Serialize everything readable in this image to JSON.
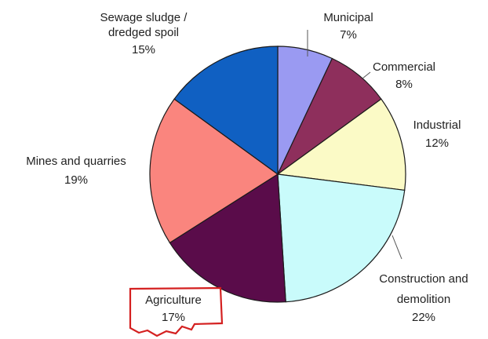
{
  "chart_data": {
    "type": "pie",
    "title": "",
    "slices": [
      {
        "name": "Municipal",
        "value": 7,
        "label": "7%",
        "color": "#9a9af2"
      },
      {
        "name": "Commercial",
        "value": 8,
        "label": "8%",
        "color": "#8e2f5c"
      },
      {
        "name": "Industrial",
        "value": 12,
        "label": "12%",
        "color": "#fbfac6"
      },
      {
        "name": "Construction and demolition",
        "value": 22,
        "label": "22%",
        "color": "#c9fbfb"
      },
      {
        "name": "Agriculture",
        "value": 17,
        "label": "17%",
        "color": "#5a0c4a"
      },
      {
        "name": "Mines and quarries",
        "value": 19,
        "label": "19%",
        "color": "#fa857e"
      },
      {
        "name": "Sewage sludge / dredged spoil",
        "value": 15,
        "label": "15%",
        "color": "#1060c2"
      }
    ],
    "start_angle_deg": 0,
    "direction": "clockwise",
    "highlighted": "Agriculture",
    "highlight_color": "#d42020",
    "legend": "none",
    "labels": {
      "municipal": {
        "line1": "Municipal",
        "line2": "7%"
      },
      "commercial": {
        "line1": "Commercial",
        "line2": "8%"
      },
      "industrial": {
        "line1": "Industrial",
        "line2": "12%"
      },
      "construction": {
        "line1": "Construction and",
        "line2": "demolition",
        "line3": "22%"
      },
      "agriculture": {
        "line1": "Agriculture",
        "line2": "17%"
      },
      "mines": {
        "line1": "Mines and quarries",
        "line2": "19%"
      },
      "sewage": {
        "line1": "Sewage sludge /",
        "line2": "dredged spoil",
        "line3": "15%"
      }
    }
  }
}
